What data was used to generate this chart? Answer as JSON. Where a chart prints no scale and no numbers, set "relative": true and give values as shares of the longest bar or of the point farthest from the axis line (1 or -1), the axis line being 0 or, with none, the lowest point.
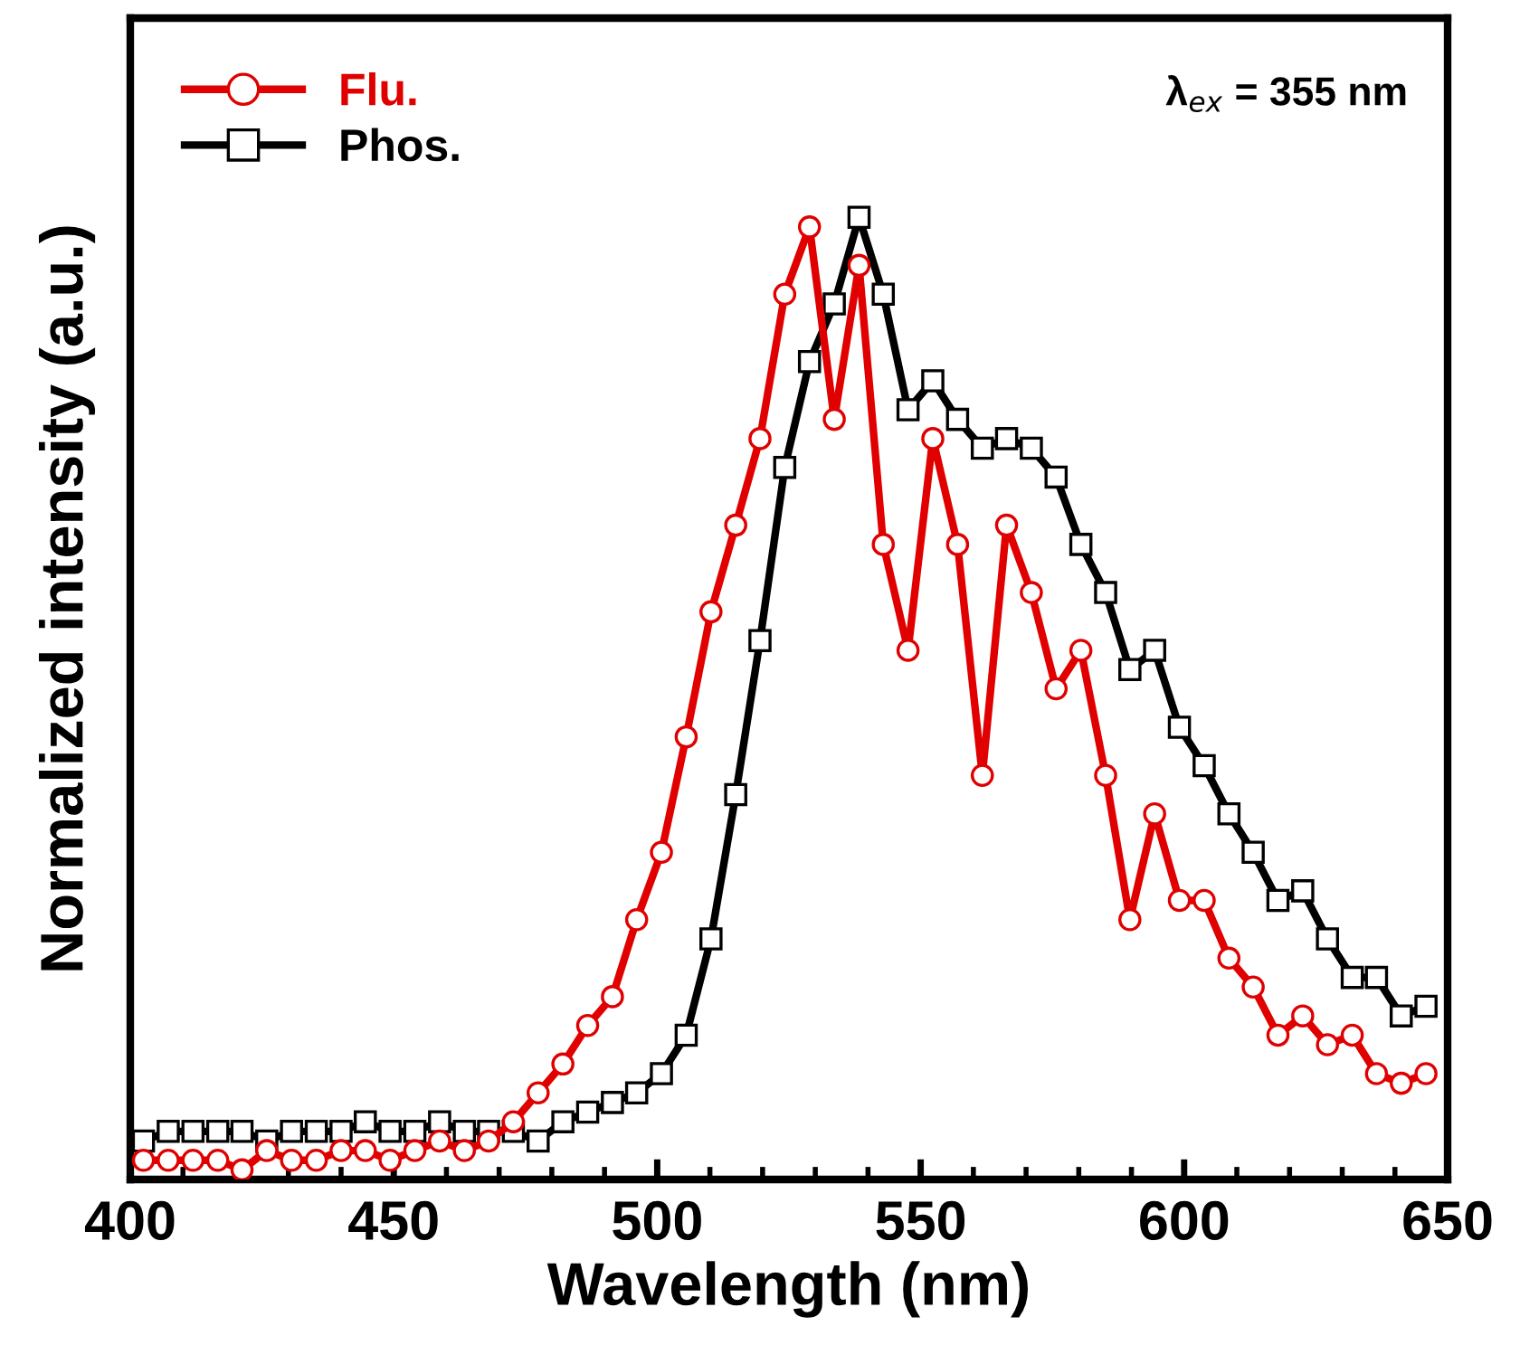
{
  "chart_data": {
    "type": "line",
    "xlabel": "Wavelength (nm)",
    "ylabel": "Normalized intensity (a.u.)",
    "relative": true,
    "xlim": [
      400,
      650
    ],
    "xticks": [
      400,
      450,
      500,
      550,
      600,
      650
    ],
    "grid": false,
    "legend": "top left",
    "annotations": [
      "λ$_{ex}$ = 355 nm"
    ],
    "x": [
      402.5,
      407.2,
      411.9,
      416.6,
      421.2,
      425.9,
      430.6,
      435.3,
      440.0,
      444.6,
      449.3,
      454.0,
      458.7,
      463.4,
      468.0,
      472.7,
      477.4,
      482.1,
      486.8,
      491.5,
      496.1,
      500.8,
      505.5,
      510.2,
      514.9,
      519.5,
      524.2,
      528.9,
      533.6,
      538.3,
      542.9,
      547.6,
      552.3,
      557.0,
      561.7,
      566.3,
      571.0,
      575.7,
      580.4,
      585.1,
      589.7,
      594.4,
      599.1,
      603.8,
      608.5,
      613.1,
      617.8,
      622.5,
      627.2,
      631.9,
      636.5,
      641.2,
      645.9
    ],
    "series": [
      {
        "name": "Flu.",
        "color": "#e00000",
        "marker": "circle",
        "values": [
          0.02,
          0.02,
          0.02,
          0.02,
          0.01,
          0.03,
          0.02,
          0.02,
          0.03,
          0.03,
          0.02,
          0.03,
          0.04,
          0.03,
          0.04,
          0.06,
          0.09,
          0.12,
          0.16,
          0.19,
          0.27,
          0.34,
          0.46,
          0.59,
          0.68,
          0.77,
          0.92,
          0.99,
          0.79,
          0.95,
          0.66,
          0.55,
          0.77,
          0.66,
          0.42,
          0.68,
          0.61,
          0.51,
          0.55,
          0.42,
          0.27,
          0.38,
          0.29,
          0.29,
          0.23,
          0.2,
          0.15,
          0.17,
          0.14,
          0.15,
          0.11,
          0.1,
          0.11
        ]
      },
      {
        "name": "Phos.",
        "color": "#000000",
        "marker": "square",
        "values": [
          0.04,
          0.05,
          0.05,
          0.05,
          0.05,
          0.04,
          0.05,
          0.05,
          0.05,
          0.06,
          0.05,
          0.05,
          0.06,
          0.05,
          0.05,
          0.05,
          0.04,
          0.06,
          0.07,
          0.08,
          0.09,
          0.11,
          0.15,
          0.25,
          0.4,
          0.56,
          0.74,
          0.85,
          0.91,
          1.0,
          0.92,
          0.8,
          0.83,
          0.79,
          0.76,
          0.77,
          0.76,
          0.73,
          0.66,
          0.61,
          0.53,
          0.55,
          0.47,
          0.43,
          0.38,
          0.34,
          0.29,
          0.3,
          0.25,
          0.21,
          0.21,
          0.17,
          0.18
        ]
      }
    ]
  }
}
